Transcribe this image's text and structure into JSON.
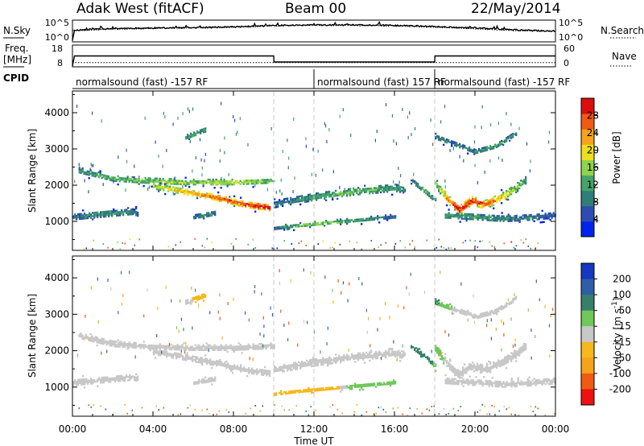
{
  "header": {
    "station": "Adak West (fitACF)",
    "beam": "Beam 00",
    "date": "22/May/2014"
  },
  "side_labels": {
    "nsky": "N.Sky",
    "nsearch": "N.Search",
    "freq": "Freq.",
    "freq_unit": "[MHz]",
    "nave": "Nave",
    "cpid": "CPID"
  },
  "noise_ticks": {
    "top": "10^5",
    "bottom": "10^0"
  },
  "freq_ticks": {
    "top": "18",
    "bottom": "8"
  },
  "nave_ticks": {
    "top": "60",
    "bottom": "0"
  },
  "cpid_segments": [
    {
      "label": "normalsound (fast) -157 RF",
      "start_hour": 0,
      "end_hour": 12
    },
    {
      "label": "normalsound (fast) 157 RF",
      "start_hour": 12,
      "end_hour": 18
    },
    {
      "label": "normalsound (fast) -157 RF",
      "start_hour": 18,
      "end_hour": 24
    }
  ],
  "chart_data": [
    {
      "type": "line",
      "panel": "noise",
      "series": [
        {
          "name": "N.Sky",
          "style": "solid",
          "hours": [
            0,
            0.1,
            1,
            2,
            4,
            6,
            8,
            9,
            10,
            12,
            14,
            16,
            18,
            19,
            20,
            21,
            22,
            23,
            24
          ],
          "log10_values": [
            0,
            2.7,
            3.0,
            3.2,
            3.3,
            3.4,
            3.6,
            3.8,
            4.0,
            4.1,
            4.1,
            4.0,
            3.7,
            3.5,
            3.3,
            3.1,
            2.8,
            2.6,
            2.5
          ]
        },
        {
          "name": "N.Search",
          "style": "dotted",
          "hours": [
            0,
            2,
            4,
            6,
            8,
            10,
            12,
            14,
            16,
            18,
            20,
            22,
            24
          ],
          "log10_values": [
            2.6,
            3.0,
            3.2,
            3.3,
            3.5,
            3.9,
            4.1,
            4.0,
            3.9,
            3.5,
            3.1,
            2.6,
            2.4
          ]
        }
      ],
      "xlim": [
        0,
        24
      ],
      "ylim": [
        0,
        5
      ]
    },
    {
      "type": "line",
      "panel": "frequency",
      "series": [
        {
          "name": "Freq.",
          "style": "solid",
          "hours": [
            0,
            0.1,
            10,
            10.01,
            18,
            18.01,
            24
          ],
          "values": [
            8,
            13,
            13,
            10,
            10,
            13,
            13
          ]
        },
        {
          "name": "Nave",
          "style": "dotted",
          "hours": [
            0,
            24
          ],
          "values": [
            10,
            10
          ]
        }
      ],
      "ylim": [
        8,
        18
      ],
      "nave_ylim": [
        0,
        60
      ],
      "xlim": [
        0,
        24
      ]
    },
    {
      "type": "heatmap",
      "panel": "power",
      "ylabel": "Slant Range [km]",
      "ylim": [
        200,
        4600
      ],
      "yticks": [
        1000,
        2000,
        3000,
        4000
      ],
      "xlim": [
        0,
        24
      ],
      "colorbar": {
        "label": "Power [dB]",
        "range": [
          0,
          32
        ],
        "ticks": [
          4,
          8,
          12,
          16,
          20,
          24,
          28
        ],
        "colors": [
          "#0022ee",
          "#2d4bb3",
          "#317d7a",
          "#43a567",
          "#8ed44a",
          "#eedf1e",
          "#f6a21b",
          "#f05a13",
          "#dc0e0e"
        ]
      },
      "echo_bands": [
        {
          "t": [
            0.3,
            2,
            4,
            6,
            8,
            10
          ],
          "r": [
            2380,
            2150,
            2080,
            2050,
            2050,
            2100
          ],
          "width_km": 180,
          "power_db": [
            10,
            14,
            16,
            16,
            18,
            14
          ]
        },
        {
          "t": [
            4,
            5.5,
            7,
            8.5,
            9.8
          ],
          "r": [
            1950,
            1800,
            1650,
            1450,
            1350
          ],
          "width_km": 200,
          "power_db": [
            16,
            22,
            26,
            28,
            30
          ]
        },
        {
          "t": [
            0,
            1,
            2,
            3,
            3.2
          ],
          "r": [
            1100,
            1150,
            1200,
            1250,
            1200
          ],
          "width_km": 200,
          "power_db": [
            8,
            10,
            12,
            8,
            6
          ]
        },
        {
          "t": [
            10,
            12,
            14,
            16,
            16.5
          ],
          "r": [
            1450,
            1650,
            1800,
            1900,
            1850
          ],
          "width_km": 220,
          "power_db": [
            8,
            12,
            14,
            12,
            10
          ]
        },
        {
          "t": [
            10,
            11,
            12,
            13,
            14,
            15,
            16
          ],
          "r": [
            780,
            850,
            900,
            950,
            1000,
            1050,
            1100
          ],
          "width_km": 140,
          "power_db": [
            8,
            12,
            16,
            14,
            12,
            10,
            8
          ]
        },
        {
          "t": [
            16.8,
            17.5,
            18
          ],
          "r": [
            2100,
            1800,
            1550
          ],
          "width_km": 160,
          "power_db": [
            8,
            14,
            10
          ]
        },
        {
          "t": [
            18,
            18.6,
            19.2,
            19.8,
            20.5,
            21.5,
            22.5
          ],
          "r": [
            2050,
            1600,
            1300,
            1550,
            1450,
            1700,
            2100
          ],
          "width_km": 260,
          "power_db": [
            12,
            24,
            30,
            28,
            26,
            20,
            12
          ]
        },
        {
          "t": [
            18.5,
            20,
            21.5,
            23,
            24
          ],
          "r": [
            1150,
            1100,
            1050,
            1100,
            1150
          ],
          "width_km": 200,
          "power_db": [
            10,
            12,
            10,
            8,
            6
          ]
        },
        {
          "t": [
            6,
            6.6,
            7.1
          ],
          "r": [
            1100,
            1150,
            1200
          ],
          "width_km": 160,
          "power_db": [
            8,
            10,
            8
          ]
        },
        {
          "t": [
            5.6,
            6.6
          ],
          "r": [
            3300,
            3500
          ],
          "width_km": 160,
          "power_db": [
            12,
            12
          ]
        },
        {
          "t": [
            18,
            19,
            20,
            21,
            22
          ],
          "r": [
            3300,
            3100,
            2900,
            3050,
            3400
          ],
          "width_km": 160,
          "power_db": [
            10,
            8,
            10,
            12,
            10
          ]
        }
      ]
    },
    {
      "type": "heatmap",
      "panel": "velocity",
      "ylabel": "Slant Range [km]",
      "ylim": [
        200,
        4600
      ],
      "yticks": [
        1000,
        2000,
        3000,
        4000
      ],
      "xlim": [
        0,
        24
      ],
      "xticks": [
        "00:00",
        "04:00",
        "08:00",
        "12:00",
        "16:00",
        "20:00",
        "00:00"
      ],
      "xlabel": "Time UT",
      "colorbar": {
        "label": "Velocity [m s^-1]",
        "range": [
          -250,
          250
        ],
        "ticks": [
          200,
          100,
          50,
          15,
          -15,
          -50,
          -100,
          -200
        ],
        "colors": [
          "#1538c0",
          "#2f5ea8",
          "#377f6b",
          "#6ec85a",
          "#c8c8c8",
          "#f7b71d",
          "#f6a21b",
          "#f05a13",
          "#ee1111"
        ]
      },
      "echo_bands": [
        {
          "t": [
            0.3,
            2,
            4,
            6,
            8,
            10
          ],
          "r": [
            2380,
            2150,
            2080,
            2050,
            2050,
            2100
          ],
          "width_km": 180,
          "velocity": [
            0,
            0,
            0,
            0,
            0,
            0
          ]
        },
        {
          "t": [
            4,
            5.5,
            7,
            8.5,
            9.8
          ],
          "r": [
            1950,
            1800,
            1650,
            1450,
            1350
          ],
          "width_km": 200,
          "velocity": [
            0,
            0,
            0,
            0,
            0
          ]
        },
        {
          "t": [
            0,
            1,
            2,
            3,
            3.2
          ],
          "r": [
            1100,
            1150,
            1200,
            1250,
            1200
          ],
          "width_km": 200,
          "velocity": [
            0,
            0,
            0,
            0,
            0
          ]
        },
        {
          "t": [
            10,
            12,
            14,
            16,
            16.5
          ],
          "r": [
            1450,
            1650,
            1800,
            1900,
            1850
          ],
          "width_km": 220,
          "velocity": [
            0,
            0,
            0,
            0,
            0
          ]
        },
        {
          "t": [
            10,
            11,
            12,
            13,
            14,
            15,
            16
          ],
          "r": [
            780,
            850,
            900,
            950,
            1000,
            1050,
            1100
          ],
          "width_km": 140,
          "velocity": [
            -40,
            -40,
            -40,
            -30,
            40,
            30,
            20
          ]
        },
        {
          "t": [
            16.8,
            17.5,
            18
          ],
          "r": [
            2100,
            1800,
            1550
          ],
          "width_km": 160,
          "velocity": [
            60,
            60,
            40
          ]
        },
        {
          "t": [
            18,
            18.6,
            19.2,
            19.8,
            20.5,
            21.5,
            22.5
          ],
          "r": [
            2050,
            1600,
            1300,
            1550,
            1450,
            1700,
            2100
          ],
          "width_km": 260,
          "velocity": [
            40,
            0,
            0,
            0,
            0,
            0,
            0
          ]
        },
        {
          "t": [
            18.5,
            20,
            21.5,
            23,
            24
          ],
          "r": [
            1150,
            1100,
            1050,
            1100,
            1150
          ],
          "width_km": 200,
          "velocity": [
            0,
            0,
            0,
            0,
            0
          ]
        },
        {
          "t": [
            6,
            6.6,
            7.1
          ],
          "r": [
            1100,
            1150,
            1200
          ],
          "width_km": 160,
          "velocity": [
            0,
            0,
            0
          ]
        },
        {
          "t": [
            5.6,
            6.6
          ],
          "r": [
            3300,
            3500
          ],
          "width_km": 160,
          "velocity": [
            0,
            -40
          ]
        },
        {
          "t": [
            18,
            19,
            20,
            21,
            22
          ],
          "r": [
            3300,
            3100,
            2900,
            3050,
            3400
          ],
          "width_km": 160,
          "velocity": [
            60,
            0,
            0,
            0,
            0
          ]
        }
      ]
    }
  ]
}
